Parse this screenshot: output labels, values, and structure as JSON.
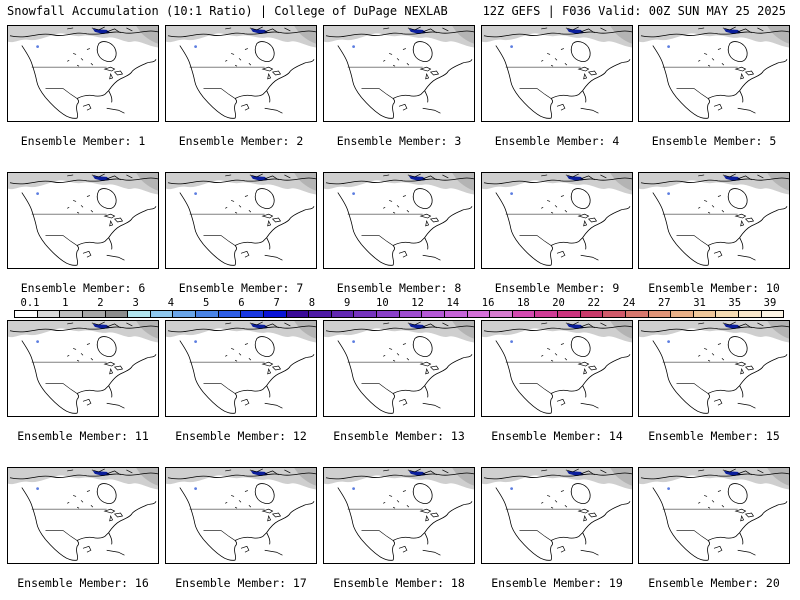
{
  "header": {
    "left_title": "Snowfall Accumulation (10:1 Ratio) | College of DuPage NEXLAB",
    "right_title": "12Z GEFS | F036 Valid: 00Z SUN MAY 25 2025"
  },
  "members": [
    {
      "label": "Ensemble Member: 1"
    },
    {
      "label": "Ensemble Member: 2"
    },
    {
      "label": "Ensemble Member: 3"
    },
    {
      "label": "Ensemble Member: 4"
    },
    {
      "label": "Ensemble Member: 5"
    },
    {
      "label": "Ensemble Member: 6"
    },
    {
      "label": "Ensemble Member: 7"
    },
    {
      "label": "Ensemble Member: 8"
    },
    {
      "label": "Ensemble Member: 9"
    },
    {
      "label": "Ensemble Member: 10"
    },
    {
      "label": "Ensemble Member: 11"
    },
    {
      "label": "Ensemble Member: 12"
    },
    {
      "label": "Ensemble Member: 13"
    },
    {
      "label": "Ensemble Member: 14"
    },
    {
      "label": "Ensemble Member: 15"
    },
    {
      "label": "Ensemble Member: 16"
    },
    {
      "label": "Ensemble Member: 17"
    },
    {
      "label": "Ensemble Member: 18"
    },
    {
      "label": "Ensemble Member: 19"
    },
    {
      "label": "Ensemble Member: 20"
    }
  ],
  "scale": {
    "labels": [
      "0.1",
      "1",
      "2",
      "3",
      "4",
      "5",
      "6",
      "7",
      "8",
      "9",
      "10",
      "12",
      "14",
      "16",
      "18",
      "20",
      "22",
      "24",
      "27",
      "31",
      "35",
      "39"
    ],
    "colors": [
      "#ffffff",
      "#d9d9d9",
      "#bfbfbf",
      "#a6a6a6",
      "#8c8c8c",
      "#b3e6f0",
      "#8fc8ee",
      "#6aa6ea",
      "#4a84e6",
      "#2e5ee6",
      "#1a38e0",
      "#0a14d6",
      "#3a0a98",
      "#4e1aa6",
      "#6228b2",
      "#7634be",
      "#8a40c8",
      "#9e4cd0",
      "#b458d6",
      "#c664d8",
      "#d470d8",
      "#d87cd0",
      "#d44ab0",
      "#d03c96",
      "#cc347e",
      "#c83a6a",
      "#d05a6a",
      "#d8786e",
      "#e09478",
      "#e8b088",
      "#f0c89c",
      "#f6dcb4",
      "#fae8cc",
      "#fdf4e4"
    ]
  },
  "snow_colors": {
    "light": "#cfcfcf",
    "medium": "#b4b4b4",
    "heavy": "#0b1e9c",
    "accent_blue": "#5c7de0"
  }
}
